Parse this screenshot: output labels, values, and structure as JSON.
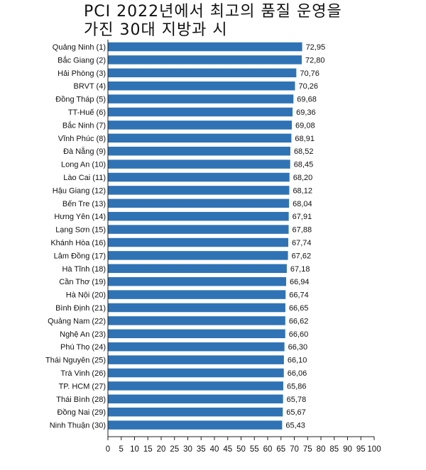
{
  "chart_data": {
    "type": "bar",
    "orientation": "horizontal",
    "title_lines": [
      "PCI 2022년에서 최고의 품질 운영을",
      "가진 30대 지방과 시"
    ],
    "categories": [
      "Quảng Ninh (1)",
      "Bắc Giang (2)",
      "Hải Phòng (3)",
      "BRVT (4)",
      "Đồng Tháp (5)",
      "TT-Huế (6)",
      "Bắc Ninh (7)",
      "Vĩnh Phúc (8)",
      "Đà Nẵng (9)",
      "Long An (10)",
      "Lào Cai (11)",
      "Hậu Giang (12)",
      "Bến Tre (13)",
      "Hưng Yên (14)",
      "Lạng Sơn (15)",
      "Khánh Hòa (16)",
      "Lâm Đồng (17)",
      "Hà Tĩnh (18)",
      "Cần Thơ (19)",
      "Hà Nội (20)",
      "Bình Định (21)",
      "Quảng Nam (22)",
      "Nghệ An (23)",
      "Phú Thọ (24)",
      "Thái Nguyên (25)",
      "Trà Vinh (26)",
      "TP. HCM (27)",
      "Thái Bình (28)",
      "Đồng Nai (29)",
      "Ninh Thuận (30)"
    ],
    "values": [
      72.95,
      72.8,
      70.76,
      70.26,
      69.68,
      69.36,
      69.08,
      68.91,
      68.52,
      68.45,
      68.2,
      68.12,
      68.04,
      67.91,
      67.88,
      67.74,
      67.62,
      67.18,
      66.94,
      66.74,
      66.65,
      66.62,
      66.6,
      66.3,
      66.1,
      66.06,
      65.86,
      65.78,
      65.67,
      65.43
    ],
    "value_labels": [
      "72,95",
      "72,80",
      "70,76",
      "70,26",
      "69,68",
      "69,36",
      "69,08",
      "68,91",
      "68,52",
      "68,45",
      "68,20",
      "68,12",
      "68,04",
      "67,91",
      "67,88",
      "67,74",
      "67,62",
      "67,18",
      "66,94",
      "66,74",
      "66,65",
      "66,62",
      "66,60",
      "66,30",
      "66,10",
      "66,06",
      "65,86",
      "65,78",
      "65,67",
      "65,43"
    ],
    "x_ticks": [
      0,
      5,
      10,
      15,
      20,
      25,
      30,
      35,
      40,
      45,
      50,
      55,
      60,
      65,
      70,
      75,
      80,
      85,
      90,
      95,
      100
    ],
    "xlim": [
      0,
      100
    ],
    "grid": false,
    "colors": {
      "bar": "#2f73b5",
      "axis": "#222222",
      "text": "#111111"
    }
  }
}
